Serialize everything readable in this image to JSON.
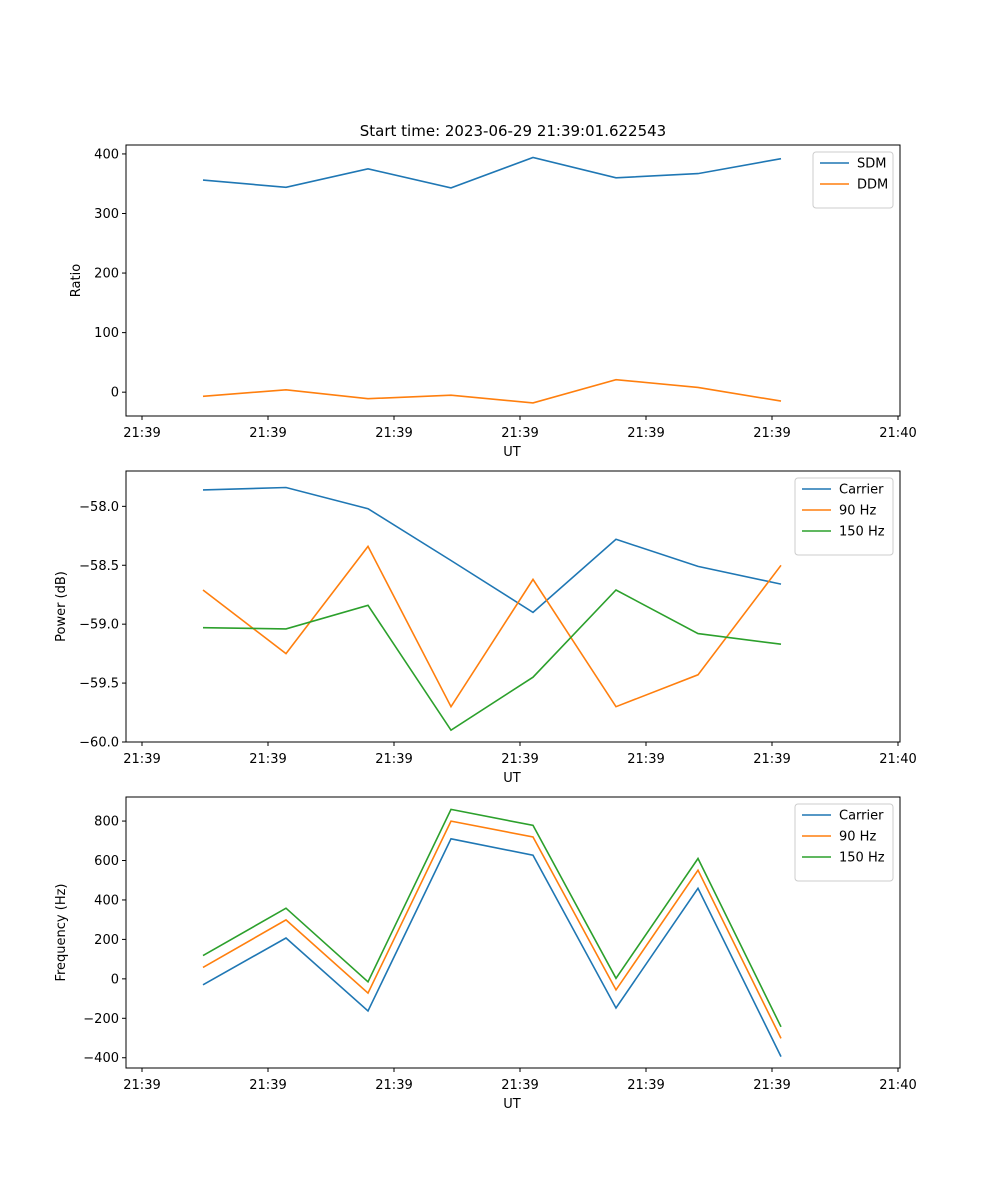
{
  "figure": {
    "title": "Start time: 2023-06-29 21:39:01.622543"
  },
  "chart_data": [
    {
      "type": "line",
      "xlabel": "UT",
      "ylabel": "Ratio",
      "x_tick_labels": [
        "21:39",
        "21:39",
        "21:39",
        "21:39",
        "21:39",
        "21:39",
        "21:39"
      ],
      "x_end_tick_label": "21:40",
      "y_ticks": [
        0,
        100,
        200,
        300,
        400
      ],
      "ylim": [
        -40,
        415
      ],
      "legend_position": "upper right",
      "grid": false,
      "series": [
        {
          "name": "SDM",
          "color": "#1f77b4",
          "values": [
            356,
            344,
            375,
            343,
            394,
            360,
            367,
            392
          ]
        },
        {
          "name": "DDM",
          "color": "#ff7f0e",
          "values": [
            -7,
            4,
            -11,
            -5,
            -18,
            21,
            8,
            -15
          ]
        }
      ]
    },
    {
      "type": "line",
      "xlabel": "UT",
      "ylabel": "Power (dB)",
      "x_tick_labels": [
        "21:39",
        "21:39",
        "21:39",
        "21:39",
        "21:39",
        "21:39",
        "21:39"
      ],
      "x_end_tick_label": "21:40",
      "y_ticks": [
        -60.0,
        -59.5,
        -59.0,
        -58.5,
        -58.0
      ],
      "ylim": [
        -60.0,
        -57.7
      ],
      "legend_position": "upper right",
      "grid": false,
      "series": [
        {
          "name": "Carrier",
          "color": "#1f77b4",
          "values": [
            -57.86,
            -57.84,
            -58.02,
            -58.46,
            -58.9,
            -58.28,
            -58.51,
            -58.66
          ]
        },
        {
          "name": "90 Hz",
          "color": "#ff7f0e",
          "values": [
            -58.71,
            -59.25,
            -58.34,
            -59.7,
            -58.62,
            -59.7,
            -59.43,
            -58.5
          ]
        },
        {
          "name": "150 Hz",
          "color": "#2ca02c",
          "values": [
            -59.03,
            -59.04,
            -58.84,
            -59.9,
            -59.45,
            -58.71,
            -59.08,
            -59.17
          ]
        }
      ]
    },
    {
      "type": "line",
      "xlabel": "UT",
      "ylabel": "Frequency (Hz)",
      "x_tick_labels": [
        "21:39",
        "21:39",
        "21:39",
        "21:39",
        "21:39",
        "21:39",
        "21:39"
      ],
      "x_end_tick_label": "21:40",
      "y_ticks": [
        -400,
        -200,
        0,
        200,
        400,
        600,
        800
      ],
      "ylim": [
        -452,
        922
      ],
      "legend_position": "upper right",
      "grid": false,
      "series": [
        {
          "name": "Carrier",
          "color": "#1f77b4",
          "values": [
            -30,
            207,
            -163,
            710,
            627,
            -148,
            459,
            -394
          ]
        },
        {
          "name": "90 Hz",
          "color": "#ff7f0e",
          "values": [
            58,
            299,
            -72,
            800,
            719,
            -56,
            551,
            -302
          ]
        },
        {
          "name": "150 Hz",
          "color": "#2ca02c",
          "values": [
            118,
            358,
            -15,
            859,
            778,
            3,
            610,
            -243
          ]
        }
      ]
    }
  ]
}
